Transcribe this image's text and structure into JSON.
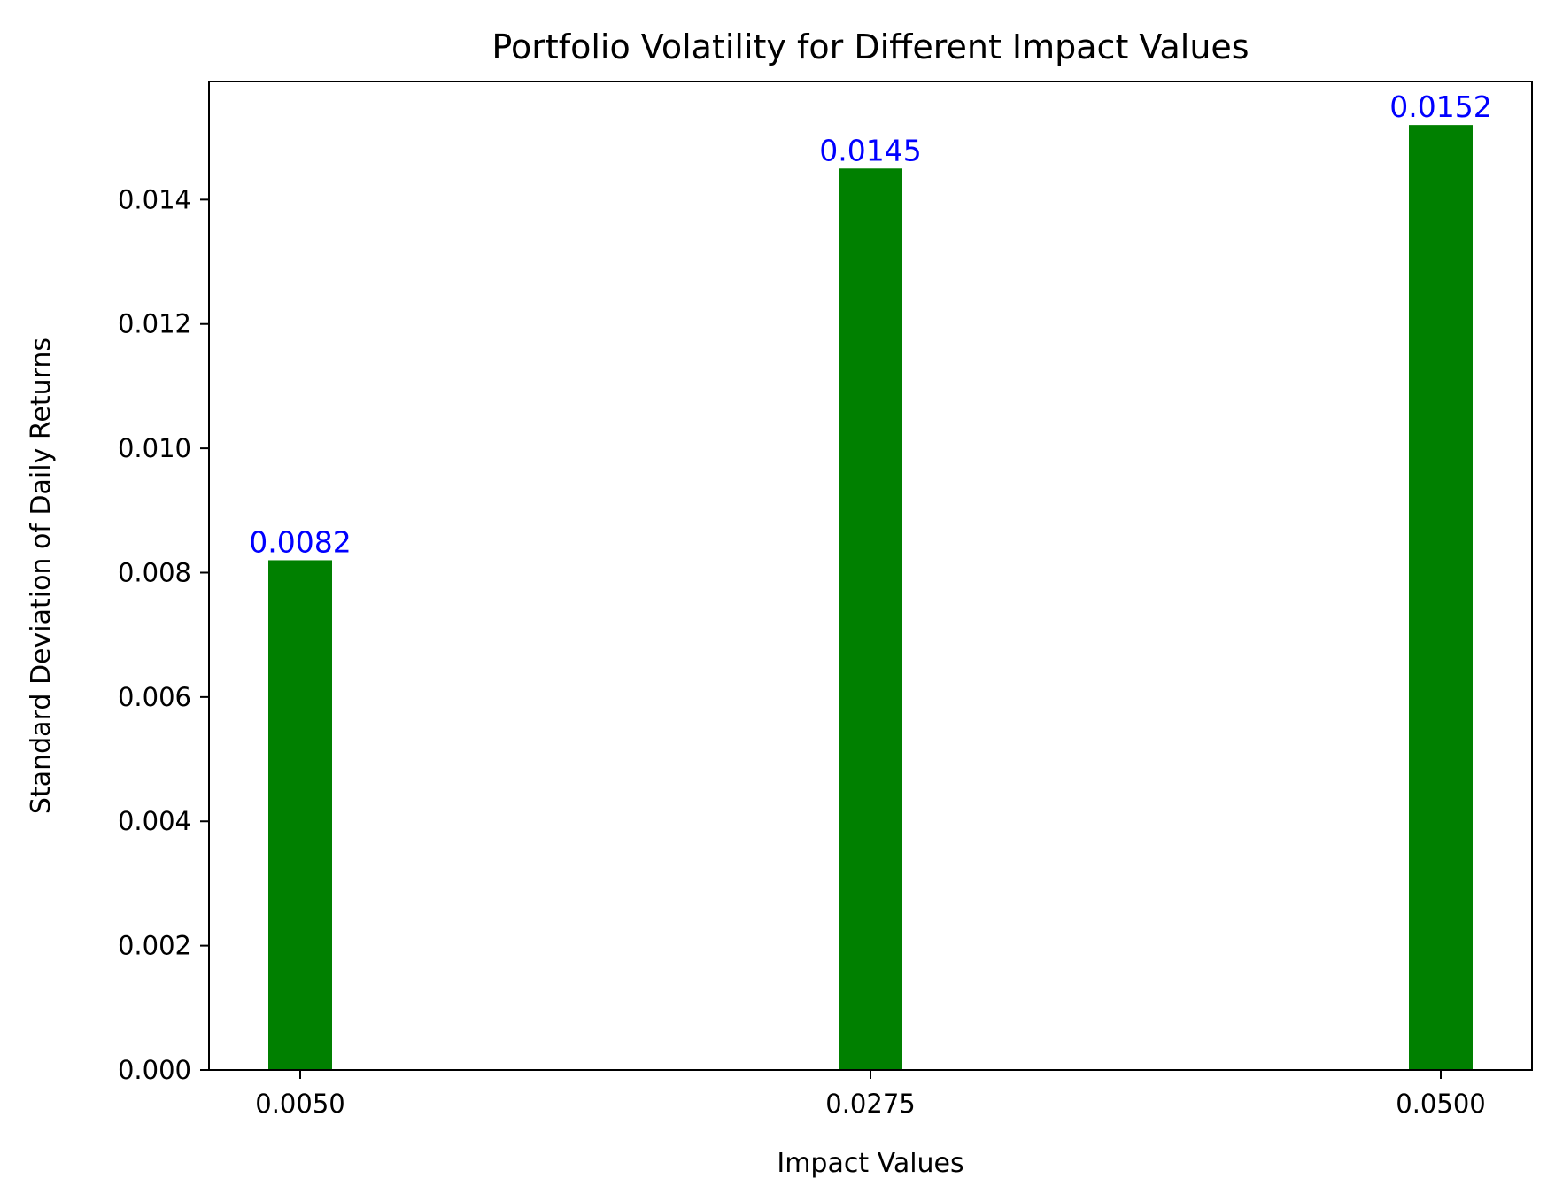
{
  "chart_data": {
    "type": "bar",
    "title": "Portfolio Volatility for Different Impact Values",
    "xlabel": "Impact Values",
    "ylabel": "Standard Deviation of Daily Returns",
    "categories": [
      "0.0050",
      "0.0275",
      "0.0500"
    ],
    "values": [
      0.0082,
      0.0145,
      0.0152
    ],
    "value_labels": [
      "0.0082",
      "0.0145",
      "0.0152"
    ],
    "ylim": [
      0,
      0.0159
    ],
    "yticks": [
      0.0,
      0.002,
      0.004,
      0.006,
      0.008,
      0.01,
      0.012,
      0.014
    ],
    "ytick_labels": [
      "0.000",
      "0.002",
      "0.004",
      "0.006",
      "0.008",
      "0.010",
      "0.012",
      "0.014"
    ],
    "grid": false,
    "legend": "none",
    "bar_color": "#008000",
    "label_color": "#0000ff"
  }
}
